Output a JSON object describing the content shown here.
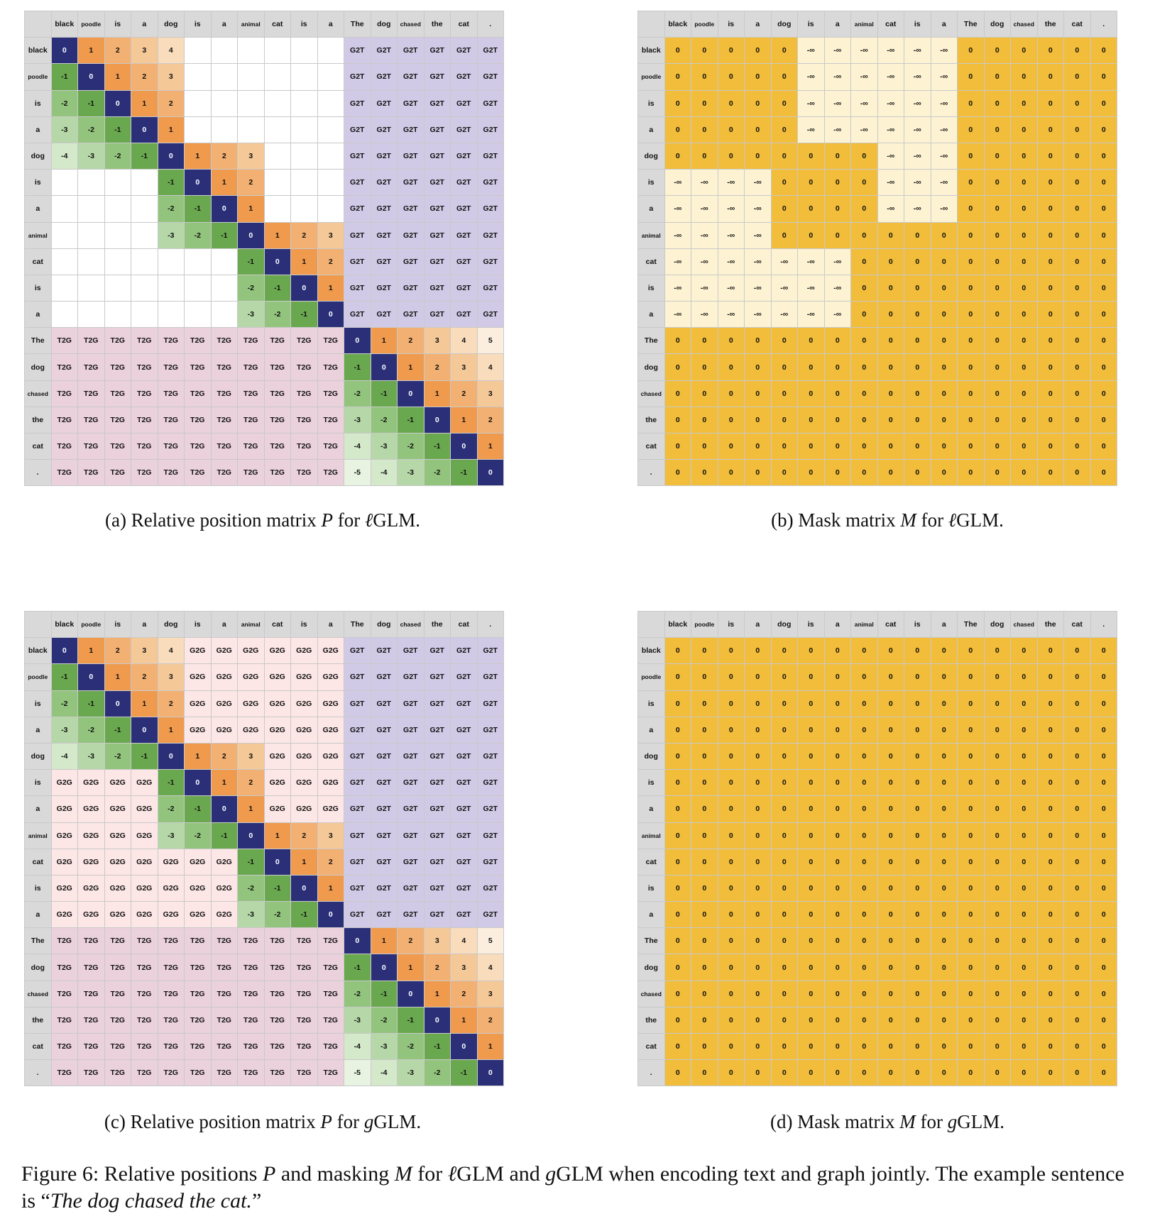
{
  "tokens": [
    "black",
    "poodle",
    "is",
    "a",
    "dog",
    "is",
    "a",
    "animal",
    "cat",
    "is",
    "a",
    "The",
    "dog",
    "chased",
    "the",
    "cat",
    "."
  ],
  "panels": {
    "a": {
      "caption_prefix": "(a) Relative position matrix ",
      "caption_sym": "P",
      "caption_mid": " for ",
      "caption_var": "ℓ",
      "caption_suffix": "GLM."
    },
    "b": {
      "caption_prefix": "(b) Mask matrix ",
      "caption_sym": "M",
      "caption_mid": " for ",
      "caption_var": "ℓ",
      "caption_suffix": "GLM."
    },
    "c": {
      "caption_prefix": "(c) Relative position matrix ",
      "caption_sym": "P",
      "caption_mid": " for ",
      "caption_var": "g",
      "caption_suffix": "GLM."
    },
    "d": {
      "caption_prefix": "(d) Mask matrix ",
      "caption_sym": "M",
      "caption_mid": " for ",
      "caption_var": "g",
      "caption_suffix": "GLM."
    }
  },
  "figure": {
    "label": "Figure 6: Relative positions ",
    "sym_p": "P",
    "mid1": " and masking ",
    "sym_m": "M",
    "mid2": " for ",
    "var_l": "ℓ",
    "mid3": "GLM and ",
    "var_g": "g",
    "mid4": "GLM when encoding text and graph jointly. The example sentence is “",
    "example": "The dog chased the cat.",
    "end": "”"
  },
  "labels": {
    "g2t": "G2T",
    "t2g": "T2G",
    "g2g": "G2G",
    "zero": "0",
    "neg_inf": "-∞"
  },
  "colors": {
    "header": "#d9d9d9",
    "diag": "#2b2f78",
    "orange": [
      "#ef9a4d",
      "#f2b072",
      "#f5c898",
      "#f8dcbc",
      "#fbeede"
    ],
    "green": [
      "#6aa84f",
      "#93c47d",
      "#b6d7a8",
      "#d4e8ca",
      "#e8f3e2"
    ],
    "g2t": "#d1cae6",
    "t2g": "#ead1dc",
    "g2g": "#fde6e6",
    "mask_zero": "#f1bd3a",
    "mask_inf": "#fdf3d2",
    "empty": "#ffffff"
  },
  "graph": {
    "n_graph": 11,
    "n_text": 6,
    "edges": [
      [
        0,
        1
      ],
      [
        1,
        2
      ],
      [
        2,
        3
      ],
      [
        3,
        4
      ],
      [
        4,
        5
      ],
      [
        5,
        6
      ],
      [
        6,
        7
      ],
      [
        7,
        8
      ],
      [
        8,
        9
      ],
      [
        9,
        10
      ]
    ]
  },
  "mask_l": {
    "neg_inf_blocks": [
      {
        "rows": [
          0,
          3
        ],
        "cols": [
          5,
          10
        ]
      },
      {
        "rows": [
          4,
          6
        ],
        "cols": [
          8,
          10
        ]
      },
      {
        "rows": [
          5,
          7
        ],
        "cols": [
          0,
          3
        ]
      },
      {
        "rows": [
          8,
          10
        ],
        "cols": [
          0,
          6
        ]
      }
    ]
  }
}
